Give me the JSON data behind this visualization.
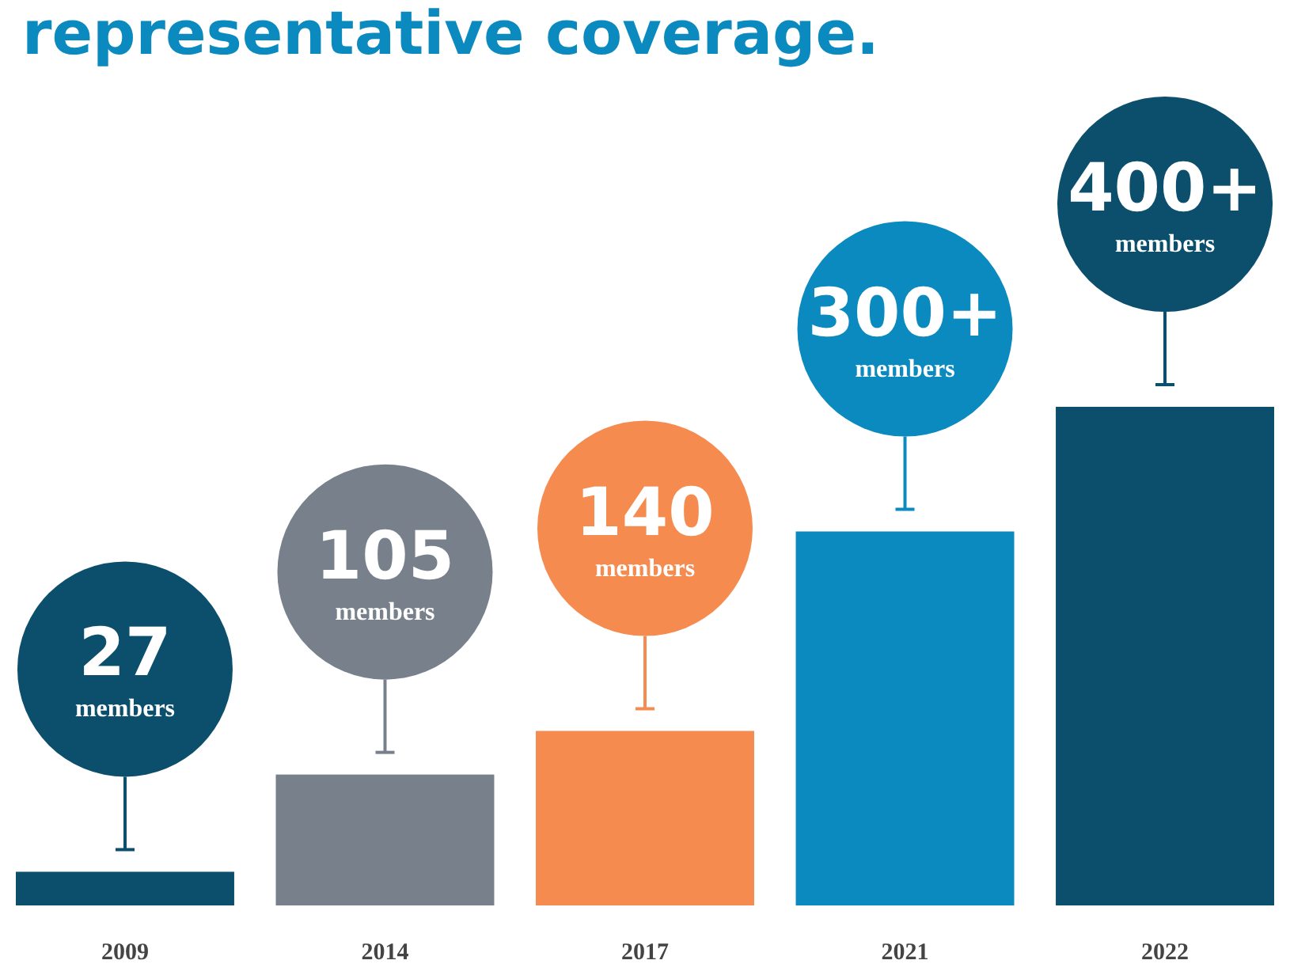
{
  "chart_data": {
    "type": "bar",
    "title": "representative coverage.",
    "categories": [
      "2009",
      "2014",
      "2017",
      "2021",
      "2022"
    ],
    "values": [
      27,
      105,
      140,
      300,
      400
    ],
    "colors": [
      "#0b4f6c",
      "#78818b",
      "#f68b50",
      "#0b8abf",
      "#0b4f6c"
    ],
    "value_labels": [
      "27 members",
      "105 members",
      "140 members",
      "300+ members",
      "400+ members"
    ]
  }
}
